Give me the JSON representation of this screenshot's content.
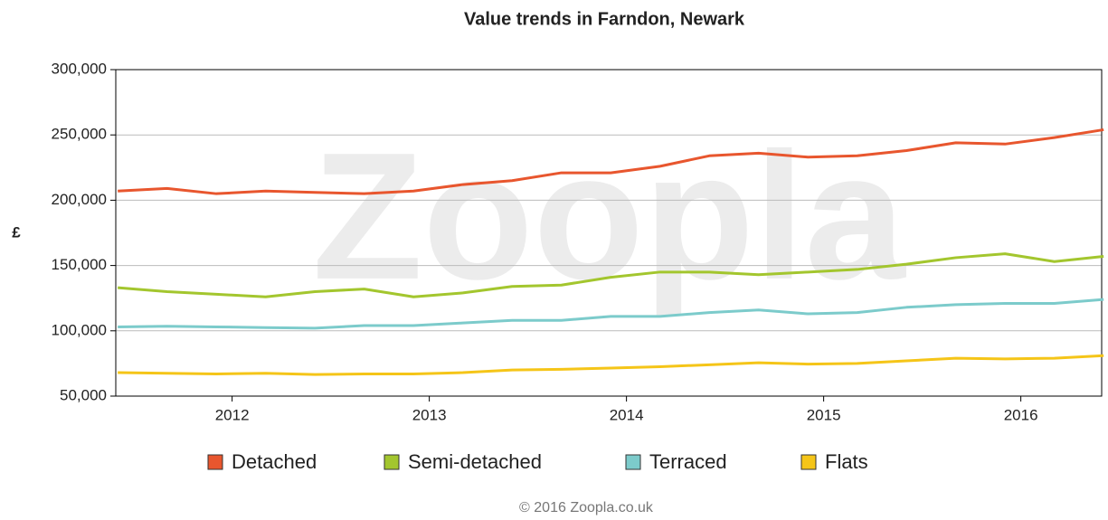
{
  "chart_data": {
    "type": "line",
    "title": "Value trends in Farndon, Newark",
    "y_label": "£",
    "watermark": "Zoopla",
    "footer": "© 2016 Zoopla.co.uk",
    "x": [
      2011.42,
      2011.67,
      2011.92,
      2012.17,
      2012.42,
      2012.67,
      2012.92,
      2013.17,
      2013.42,
      2013.67,
      2013.92,
      2014.17,
      2014.42,
      2014.67,
      2014.92,
      2015.17,
      2015.42,
      2015.67,
      2015.92,
      2016.17,
      2016.42
    ],
    "series": [
      {
        "name": "Detached",
        "color": "#e8562e",
        "values": [
          207000,
          209000,
          205000,
          207000,
          206000,
          205000,
          207000,
          212000,
          215000,
          221000,
          221000,
          226000,
          234000,
          236000,
          233000,
          234000,
          238000,
          244000,
          243000,
          248000,
          254000
        ]
      },
      {
        "name": "Semi-detached",
        "color": "#a3c62e",
        "values": [
          133000,
          130000,
          128000,
          126000,
          130000,
          132000,
          126000,
          129000,
          134000,
          135000,
          141000,
          145000,
          145000,
          143000,
          145000,
          147000,
          151000,
          156000,
          159000,
          153000,
          157000
        ]
      },
      {
        "name": "Terraced",
        "color": "#7ccbcb",
        "values": [
          103000,
          103500,
          103000,
          102500,
          102000,
          104000,
          104000,
          106000,
          108000,
          108000,
          111000,
          111000,
          114000,
          116000,
          113000,
          114000,
          118000,
          120000,
          121000,
          121000,
          124000
        ]
      },
      {
        "name": "Flats",
        "color": "#f5c518",
        "values": [
          68000,
          67500,
          67000,
          67500,
          66500,
          67000,
          67000,
          68000,
          70000,
          70500,
          71500,
          72500,
          74000,
          75500,
          74500,
          75000,
          77000,
          79000,
          78500,
          79000,
          81000
        ]
      }
    ],
    "xlim": [
      2011.41,
      2016.41
    ],
    "xticks": [
      2012,
      2013,
      2014,
      2015,
      2016
    ],
    "ylim": [
      50000,
      300000
    ],
    "yticks": [
      {
        "value": 50000,
        "label": "50,000"
      },
      {
        "value": 100000,
        "label": "100,000"
      },
      {
        "value": 150000,
        "label": "150,000"
      },
      {
        "value": 200000,
        "label": "200,000"
      },
      {
        "value": 250000,
        "label": "250,000"
      },
      {
        "value": 300000,
        "label": "300,000"
      }
    ],
    "grid": true,
    "legend": "bottom"
  }
}
